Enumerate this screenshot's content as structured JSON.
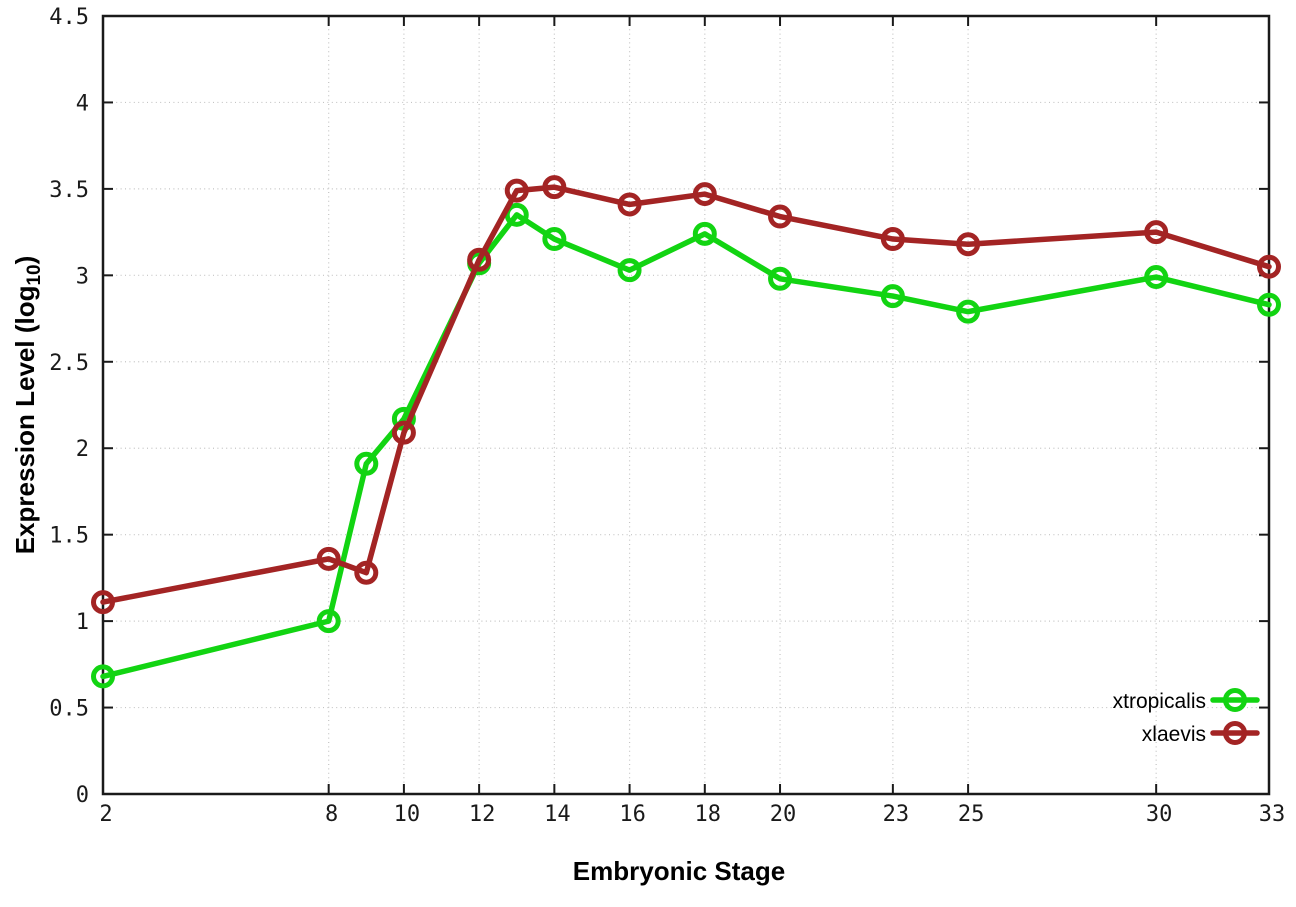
{
  "chart_data": {
    "type": "line",
    "style": "gnuplot-linespoints",
    "title": "",
    "xlabel": "Embryonic Stage",
    "ylabel": {
      "pre": "Expression Level (log",
      "sub": "10",
      "post": ")"
    },
    "ylabel_text": "Expression Level (log10)",
    "x": [
      2,
      8,
      9,
      10,
      12,
      13,
      14,
      16,
      18,
      20,
      23,
      25,
      30,
      33
    ],
    "series": [
      {
        "name": "xtropicalis",
        "color": "#12d412",
        "values": [
          0.68,
          1.0,
          1.91,
          2.17,
          3.07,
          3.35,
          3.21,
          3.03,
          3.24,
          2.98,
          2.88,
          2.79,
          2.99,
          2.83
        ]
      },
      {
        "name": "xlaevis",
        "color": "#a32424",
        "values": [
          1.11,
          1.36,
          1.28,
          2.09,
          3.09,
          3.49,
          3.51,
          3.41,
          3.47,
          3.34,
          3.21,
          3.18,
          3.25,
          3.05
        ]
      }
    ],
    "xlim": [
      2,
      33
    ],
    "ylim": [
      0,
      4.5
    ],
    "x_ticks": [
      2,
      8,
      10,
      12,
      14,
      16,
      18,
      20,
      23,
      25,
      30,
      33
    ],
    "x_tick_labels": [
      "2",
      "8",
      "10",
      "12",
      "14",
      "16",
      "18",
      "20",
      "23",
      "25",
      "30",
      "33"
    ],
    "y_ticks": [
      0,
      0.5,
      1,
      1.5,
      2,
      2.5,
      3,
      3.5,
      4,
      4.5
    ],
    "y_tick_labels": [
      "0",
      "0.5",
      "1",
      "1.5",
      "2",
      "2.5",
      "3",
      "3.5",
      "4",
      "4.5"
    ],
    "grid": true,
    "grid_color": "#c4c4c4",
    "border_color": "#1a1a1a",
    "background": "#ffffff",
    "legend_position": "inside-bottom-right",
    "legend": [
      {
        "label": "xtropicalis",
        "color": "#12d412"
      },
      {
        "label": "xlaevis",
        "color": "#a32424"
      }
    ]
  }
}
